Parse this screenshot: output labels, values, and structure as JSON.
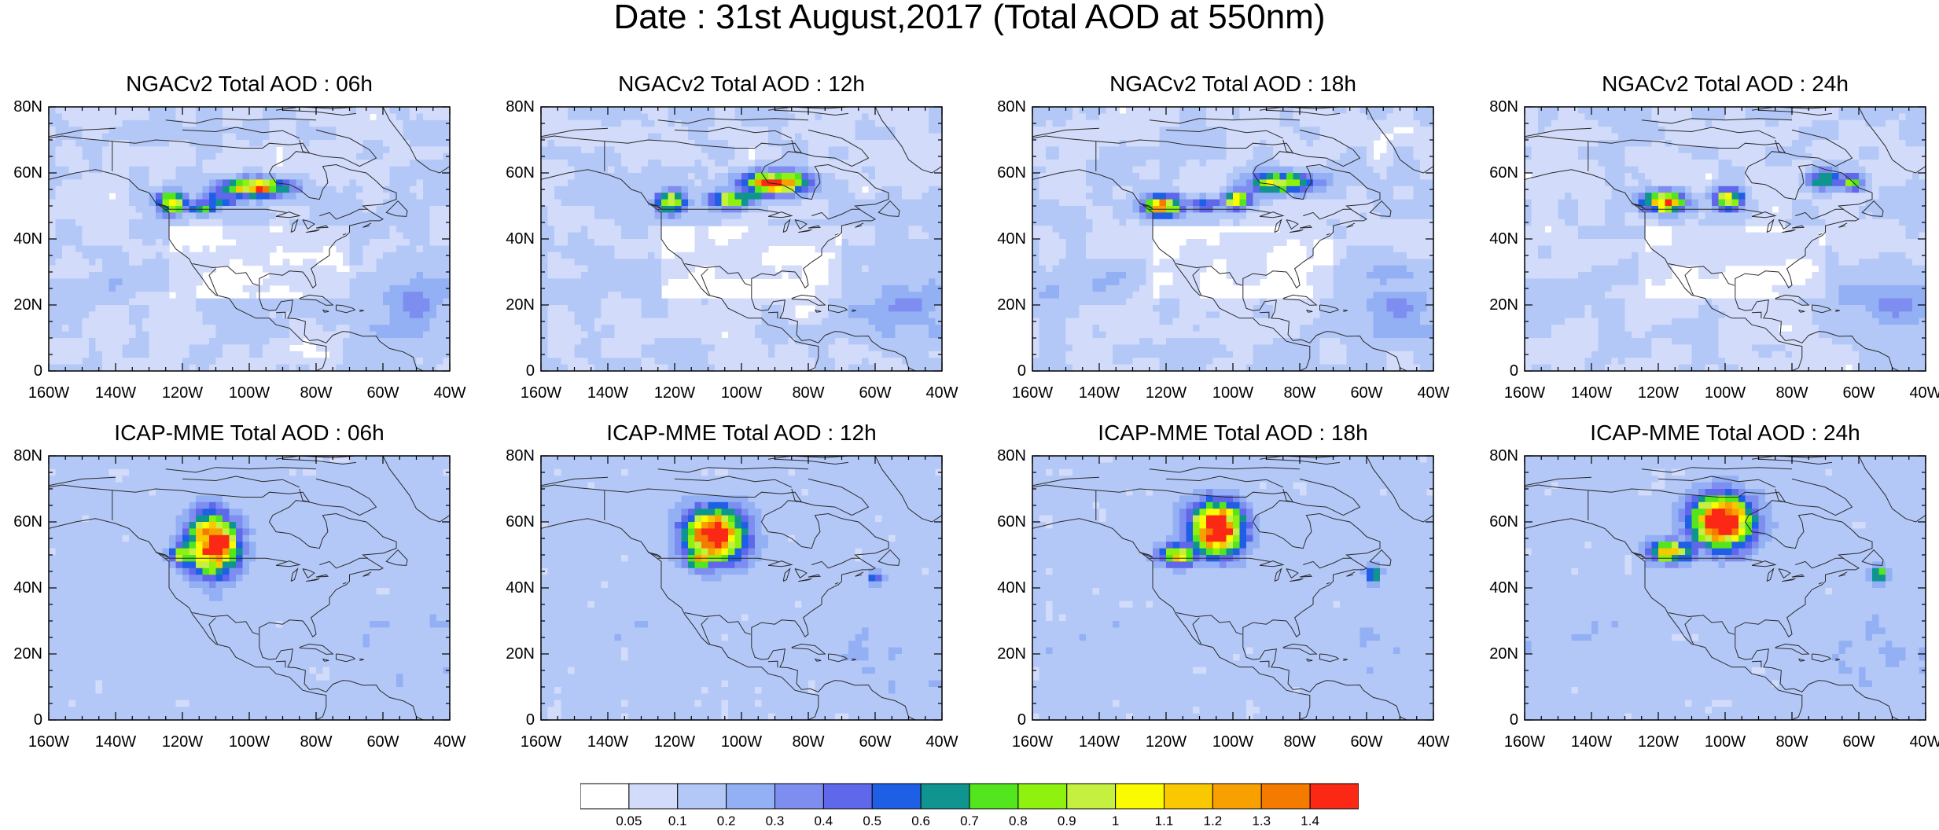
{
  "title": "Date : 31st August,2017 (Total AOD at 550nm)",
  "lat_labels": [
    "80N",
    "60N",
    "40N",
    "20N",
    "0"
  ],
  "lon_labels": [
    "160W",
    "140W",
    "120W",
    "100W",
    "80W",
    "60W",
    "40W"
  ],
  "panels": [
    {
      "title": "NGACv2 Total AOD : 06h",
      "model": "NGACv2",
      "hour": "06h"
    },
    {
      "title": "NGACv2 Total AOD : 12h",
      "model": "NGACv2",
      "hour": "12h"
    },
    {
      "title": "NGACv2 Total AOD : 18h",
      "model": "NGACv2",
      "hour": "18h"
    },
    {
      "title": "NGACv2 Total AOD : 24h",
      "model": "NGACv2",
      "hour": "24h"
    },
    {
      "title": "ICAP-MME Total AOD : 06h",
      "model": "ICAP-MME",
      "hour": "06h"
    },
    {
      "title": "ICAP-MME Total AOD : 12h",
      "model": "ICAP-MME",
      "hour": "12h"
    },
    {
      "title": "ICAP-MME Total AOD : 18h",
      "model": "ICAP-MME",
      "hour": "18h"
    },
    {
      "title": "ICAP-MME Total AOD : 24h",
      "model": "ICAP-MME",
      "hour": "24h"
    }
  ],
  "colorbar": {
    "labels": [
      "0.05",
      "0.1",
      "0.2",
      "0.3",
      "0.4",
      "0.5",
      "0.6",
      "0.7",
      "0.8",
      "0.9",
      "1",
      "1.1",
      "1.2",
      "1.3",
      "1.4"
    ],
    "colors": [
      "#ffffff",
      "#d2dcfa",
      "#b4c8f8",
      "#94b0f4",
      "#7e8ef0",
      "#5f68ea",
      "#1f5fe6",
      "#0f9490",
      "#53e61e",
      "#8ef20e",
      "#c6f040",
      "#fafa00",
      "#fac800",
      "#f8a000",
      "#f47a00",
      "#fa2814"
    ]
  },
  "map_extent": {
    "lon": [
      -160,
      -40
    ],
    "lat": [
      0,
      80
    ]
  }
}
